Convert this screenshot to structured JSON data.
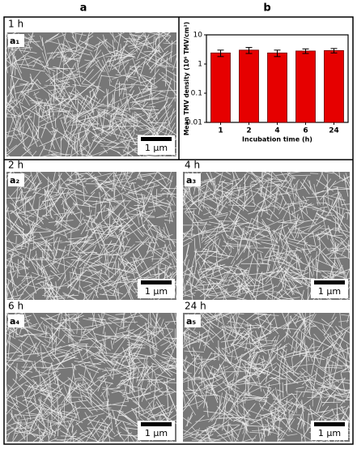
{
  "figure_labels": {
    "a": "a",
    "b": "b"
  },
  "panels": [
    {
      "time": "1 h",
      "label": "a₁",
      "scale": "1 μm"
    },
    {
      "time": "2 h",
      "label": "a₂",
      "scale": "1 μm"
    },
    {
      "time": "4 h",
      "label": "a₃",
      "scale": "1 μm"
    },
    {
      "time": "6 h",
      "label": "a₄",
      "scale": "1 μm"
    },
    {
      "time": "24 h",
      "label": "a₅",
      "scale": "1 μm"
    }
  ],
  "chart_data": {
    "type": "bar",
    "x_label": "Incubation time (h)",
    "y_label": "Mean TMV density (10⁶ TMV/cm²)",
    "categories": [
      "1",
      "2",
      "4",
      "6",
      "24"
    ],
    "values": [
      2.4,
      3.0,
      2.4,
      2.8,
      2.9
    ],
    "errors": [
      0.6,
      0.7,
      0.6,
      0.5,
      0.5
    ],
    "color": "#e60000",
    "log_y": true,
    "ylim": [
      0.01,
      10
    ],
    "yticks": [
      0.01,
      0.1,
      1,
      10
    ]
  }
}
